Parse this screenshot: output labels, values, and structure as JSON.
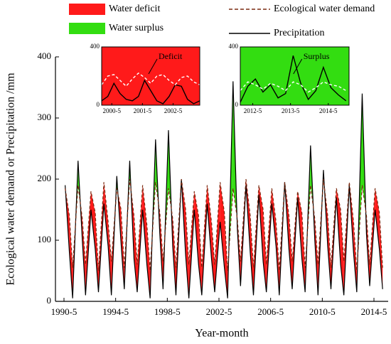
{
  "chart_data": [
    {
      "type": "line",
      "y_label": "Ecological water demand or Precipitation /mm",
      "x_label": "Year-month",
      "xlim": [
        1989.67,
        2015.43
      ],
      "xticks": [
        {
          "value": 1990.33,
          "label": "1990-5"
        },
        {
          "value": 1994.33,
          "label": "1994-5"
        },
        {
          "value": 1998.33,
          "label": "1998-5"
        },
        {
          "value": 2002.33,
          "label": "2002-5"
        },
        {
          "value": 2006.33,
          "label": "2006-5"
        },
        {
          "value": 2010.33,
          "label": "2010-5"
        },
        {
          "value": 2014.33,
          "label": "2014-5"
        }
      ],
      "ylim": [
        0,
        400
      ],
      "yticks": [
        0,
        100,
        200,
        300,
        400
      ],
      "fills": [
        {
          "name": "Water deficit",
          "color": "#ff1a1a"
        },
        {
          "name": "Water surplus",
          "color": "#33dd11"
        }
      ],
      "x": [
        1990.42,
        1990.75,
        1991.0,
        1991.42,
        1991.75,
        1992.0,
        1992.42,
        1992.75,
        1993.0,
        1993.42,
        1993.75,
        1994.0,
        1994.42,
        1994.75,
        1995.0,
        1995.42,
        1995.75,
        1996.0,
        1996.42,
        1996.75,
        1997.0,
        1997.42,
        1997.75,
        1998.0,
        1998.42,
        1998.75,
        1999.0,
        1999.42,
        1999.75,
        2000.0,
        2000.42,
        2000.75,
        2001.0,
        2001.42,
        2001.75,
        2002.0,
        2002.42,
        2002.75,
        2003.0,
        2003.42,
        2003.75,
        2004.0,
        2004.42,
        2004.75,
        2005.0,
        2005.42,
        2005.75,
        2006.0,
        2006.42,
        2006.75,
        2007.0,
        2007.42,
        2007.75,
        2008.0,
        2008.42,
        2008.75,
        2009.0,
        2009.42,
        2009.75,
        2010.0,
        2010.42,
        2010.75,
        2011.0,
        2011.42,
        2011.75,
        2012.0,
        2012.42,
        2012.75,
        2013.0,
        2013.42,
        2013.75,
        2014.0,
        2014.42,
        2014.75,
        2015.0
      ],
      "series": [
        {
          "name": "Precipitation",
          "color": "#000000",
          "dash": false,
          "values": [
            190,
            80,
            5,
            230,
            100,
            10,
            150,
            85,
            15,
            160,
            90,
            10,
            205,
            95,
            20,
            230,
            70,
            15,
            150,
            60,
            5,
            265,
            110,
            20,
            280,
            90,
            10,
            200,
            75,
            5,
            150,
            60,
            10,
            160,
            70,
            15,
            130,
            55,
            5,
            360,
            120,
            25,
            190,
            80,
            10,
            175,
            65,
            15,
            160,
            90,
            10,
            195,
            85,
            20,
            170,
            70,
            15,
            255,
            100,
            10,
            215,
            90,
            20,
            170,
            60,
            10,
            190,
            80,
            15,
            340,
            110,
            25,
            150,
            85,
            20
          ]
        },
        {
          "name": "Ecological water demand",
          "color": "#7a2a10",
          "dash": true,
          "values": [
            185,
            140,
            55,
            190,
            135,
            60,
            180,
            145,
            50,
            195,
            130,
            65,
            185,
            150,
            55,
            200,
            140,
            60,
            190,
            125,
            50,
            195,
            145,
            65,
            185,
            135,
            55,
            200,
            150,
            60,
            180,
            140,
            55,
            190,
            130,
            60,
            195,
            145,
            50,
            185,
            135,
            65,
            200,
            140,
            55,
            190,
            150,
            60,
            185,
            130,
            50,
            195,
            140,
            65,
            180,
            145,
            55,
            190,
            135,
            60,
            200,
            140,
            55,
            185,
            150,
            65,
            195,
            130,
            50,
            190,
            140,
            60,
            185,
            145,
            55
          ]
        }
      ]
    },
    {
      "type": "inset",
      "background": "#ff1a1a",
      "annotation": "Deficit",
      "xlim": [
        2000.0,
        2003.2
      ],
      "xticks": [
        {
          "value": 2000.33,
          "label": "2000-5"
        },
        {
          "value": 2001.33,
          "label": "2001-5"
        },
        {
          "value": 2002.33,
          "label": "2002-5"
        }
      ],
      "ylim": [
        0,
        400
      ],
      "yticks": [
        0,
        400
      ],
      "x": [
        2000.0,
        2000.2,
        2000.4,
        2000.6,
        2000.8,
        2001.0,
        2001.2,
        2001.4,
        2001.6,
        2001.8,
        2002.0,
        2002.2,
        2002.4,
        2002.6,
        2002.8,
        2003.0,
        2003.2
      ],
      "series": [
        {
          "name": "Precipitation",
          "color": "#000000",
          "dash": false,
          "values": [
            30,
            60,
            150,
            80,
            40,
            30,
            60,
            170,
            100,
            30,
            10,
            60,
            140,
            130,
            40,
            10,
            30
          ]
        },
        {
          "name": "Ecological water demand",
          "color": "#ffffff",
          "dash": true,
          "values": [
            140,
            200,
            210,
            170,
            130,
            180,
            220,
            190,
            150,
            200,
            210,
            170,
            140,
            190,
            200,
            160,
            140
          ]
        }
      ]
    },
    {
      "type": "inset",
      "background": "#33dd11",
      "annotation": "Surplus",
      "xlim": [
        2012.0,
        2014.88
      ],
      "xticks": [
        {
          "value": 2012.33,
          "label": "2012-5"
        },
        {
          "value": 2013.33,
          "label": "2013-5"
        },
        {
          "value": 2014.33,
          "label": "2014-5"
        }
      ],
      "ylim": [
        0,
        400
      ],
      "yticks": [
        0,
        400
      ],
      "x": [
        2012.0,
        2012.2,
        2012.4,
        2012.6,
        2012.8,
        2013.0,
        2013.2,
        2013.4,
        2013.6,
        2013.8,
        2014.0,
        2014.2,
        2014.4,
        2014.6,
        2014.8
      ],
      "series": [
        {
          "name": "Precipitation",
          "color": "#000000",
          "dash": false,
          "values": [
            20,
            130,
            180,
            90,
            140,
            50,
            80,
            340,
            150,
            40,
            100,
            260,
            120,
            70,
            30
          ]
        },
        {
          "name": "Ecological water demand",
          "color": "#ffffff",
          "dash": true,
          "values": [
            100,
            160,
            140,
            110,
            150,
            130,
            100,
            160,
            140,
            90,
            120,
            160,
            140,
            130,
            100
          ]
        }
      ]
    }
  ]
}
